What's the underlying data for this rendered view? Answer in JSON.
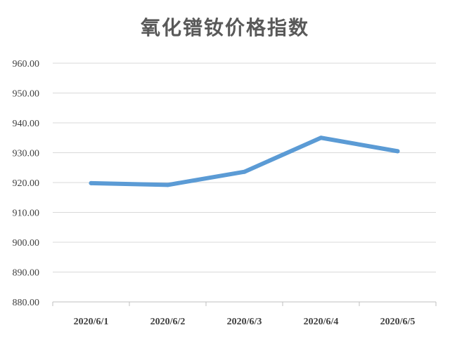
{
  "chart_data": {
    "type": "line",
    "title": "氧化镨钕价格指数",
    "xlabel": "",
    "ylabel": "",
    "categories": [
      "2020/6/1",
      "2020/6/2",
      "2020/6/3",
      "2020/6/4",
      "2020/6/5"
    ],
    "series": [
      {
        "values": [
          919.8,
          919.2,
          923.6,
          935.0,
          930.5
        ]
      }
    ],
    "ylim": [
      880,
      960
    ],
    "y_ticks": [
      "880.00",
      "890.00",
      "900.00",
      "910.00",
      "920.00",
      "930.00",
      "940.00",
      "950.00",
      "960.00"
    ],
    "grid": true,
    "legend": "none",
    "line_color": "#5b9bd5",
    "grid_color": "#d9d9d9",
    "axis_color": "#bfbfbf"
  }
}
